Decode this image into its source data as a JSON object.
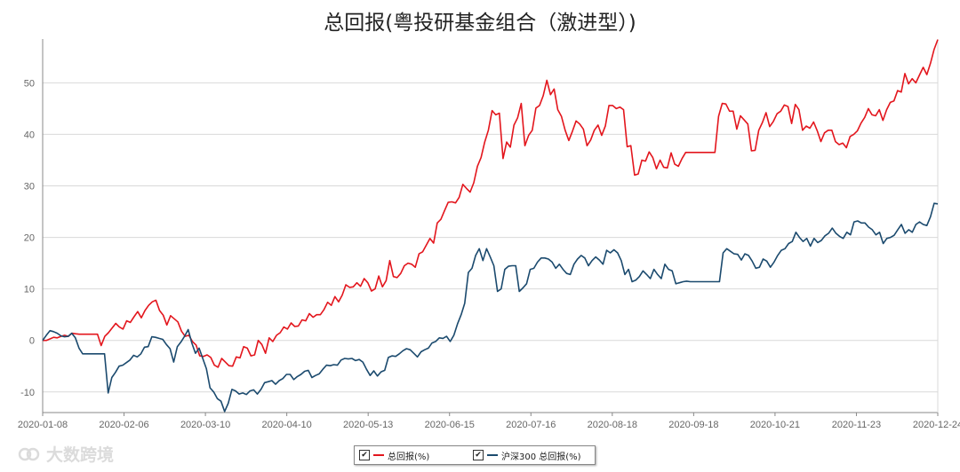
{
  "title": "总回报(粤投研基金组合（激进型）)",
  "colors": {
    "series1": "#e3161d",
    "series2": "#1b4a6e",
    "grid": "#d9d9d9",
    "axis": "#666666"
  },
  "legend": {
    "items": [
      {
        "label": "总回报(%)",
        "checked": "✔"
      },
      {
        "label": "沪深300 总回报(%)",
        "checked": "✔"
      }
    ]
  },
  "watermark": {
    "text": "大数跨境"
  },
  "chart_data": {
    "type": "line",
    "x_ticks": [
      "2020-01-08",
      "2020-02-06",
      "2020-03-10",
      "2020-04-10",
      "2020-05-13",
      "2020-06-15",
      "2020-07-16",
      "2020-08-18",
      "2020-09-18",
      "2020-10-21",
      "2020-11-23",
      "2020-12-24"
    ],
    "y_ticks": [
      -10,
      0,
      10,
      20,
      30,
      40,
      50
    ],
    "ylim": [
      -14,
      58.5
    ],
    "grid": true,
    "legend_position": "bottom",
    "series": [
      {
        "name": "总回报(%)",
        "color": "#e3161d",
        "values": [
          0,
          0,
          0.3,
          0.6,
          0.5,
          0.8,
          1.0,
          0.8,
          1.4,
          1.3,
          1.2,
          1.2,
          1.2,
          1.2,
          1.2,
          1.2,
          -1.0,
          0.8,
          1.5,
          2.4,
          3.3,
          2.6,
          2.2,
          3.8,
          3.5,
          4.6,
          5.6,
          4.4,
          5.8,
          6.8,
          7.5,
          7.8,
          5.8,
          4.9,
          3.0,
          4.8,
          4.2,
          3.6,
          1.8,
          0.8,
          1.0,
          -0.2,
          -0.9,
          -3.0,
          -3.1,
          -2.8,
          -3.3,
          -4.8,
          -5.2,
          -3.5,
          -4.2,
          -4.9,
          -5.0,
          -3.2,
          -3.4,
          -1.2,
          -1.5,
          -3.0,
          -2.8,
          0.0,
          -0.8,
          -2.5,
          0.5,
          -0.2,
          1.0,
          1.5,
          2.6,
          2.2,
          3.4,
          2.7,
          2.8,
          4.0,
          3.8,
          5.2,
          4.5,
          5.0,
          5.0,
          6.0,
          7.4,
          6.8,
          8.5,
          7.5,
          8.8,
          10.8,
          10.3,
          10.4,
          11.2,
          10.5,
          12.0,
          11.2,
          9.6,
          10.0,
          12.5,
          10.4,
          11.6,
          15.5,
          12.4,
          12.2,
          13.0,
          14.5,
          15.0,
          14.8,
          14.2,
          16.8,
          17.2,
          18.5,
          19.8,
          18.9,
          22.8,
          23.5,
          25.2,
          26.8,
          26.9,
          26.7,
          27.8,
          30.3,
          29.5,
          28.8,
          30.6,
          33.8,
          35.5,
          38.5,
          40.8,
          44.6,
          43.8,
          44.1,
          35.3,
          38.5,
          37.5,
          41.8,
          43.2,
          46.0,
          37.8,
          39.8,
          40.8,
          45.1,
          45.6,
          47.5,
          50.5,
          47.7,
          48.8,
          44.8,
          43.5,
          40.8,
          38.8,
          40.6,
          42.6,
          42.0,
          41.0,
          37.8,
          38.9,
          40.8,
          41.8,
          39.8,
          41.6,
          45.6,
          45.6,
          45.0,
          45.3,
          44.8,
          37.6,
          37.8,
          32.1,
          32.3,
          35.0,
          34.8,
          36.6,
          35.5,
          33.3,
          35.0,
          33.6,
          33.5,
          36.4,
          34.2,
          33.8,
          35.3,
          36.5,
          36.5,
          36.5,
          36.5,
          36.5,
          36.5,
          36.5,
          36.5,
          36.5,
          43.5,
          46.0,
          45.9,
          44.5,
          44.5,
          41.0,
          43.6,
          42.8,
          42.0,
          36.8,
          36.9,
          40.8,
          42.3,
          44.2,
          41.5,
          42.5,
          44.0,
          44.5,
          45.7,
          45.4,
          42.1,
          45.8,
          44.8,
          40.8,
          41.6,
          41.2,
          42.4,
          40.7,
          38.6,
          40.3,
          40.8,
          40.8,
          38.6,
          38.0,
          38.3,
          37.4,
          39.6,
          40.0,
          40.7,
          42.2,
          43.3,
          45.0,
          43.8,
          43.6,
          44.8,
          42.7,
          44.8,
          46.2,
          46.5,
          48.5,
          48.2,
          51.8,
          49.8,
          50.8,
          50.0,
          51.5,
          53.0,
          51.6,
          53.8,
          56.5,
          58.4
        ]
      },
      {
        "name": "沪深300 总回报(%)",
        "color": "#1b4a6e",
        "values": [
          0,
          1.0,
          1.9,
          1.7,
          1.4,
          0.9,
          0.7,
          0.8,
          1.4,
          0.5,
          -1.5,
          -2.6,
          -2.6,
          -2.6,
          -2.6,
          -2.6,
          -2.6,
          -2.6,
          -10.2,
          -7.2,
          -6.2,
          -5.0,
          -4.8,
          -4.3,
          -3.8,
          -2.9,
          -3.2,
          -2.6,
          -1.3,
          -1.2,
          0.7,
          0.6,
          0.4,
          0.2,
          -0.8,
          -1.6,
          -4.2,
          -1.2,
          -0.3,
          0.8,
          2.1,
          -0.5,
          -2.5,
          -1.5,
          -3.5,
          -5.5,
          -9.2,
          -10.0,
          -11.3,
          -11.8,
          -13.8,
          -12.2,
          -9.5,
          -9.8,
          -10.4,
          -10.2,
          -10.5,
          -9.8,
          -9.6,
          -10.4,
          -9.5,
          -8.2,
          -8.0,
          -7.8,
          -8.5,
          -7.8,
          -7.4,
          -6.6,
          -6.6,
          -7.6,
          -7.0,
          -6.6,
          -6.0,
          -5.8,
          -7.2,
          -6.8,
          -6.5,
          -5.6,
          -4.8,
          -4.9,
          -4.7,
          -4.8,
          -3.8,
          -3.5,
          -3.6,
          -3.5,
          -3.9,
          -3.7,
          -4.2,
          -5.6,
          -6.8,
          -5.9,
          -6.9,
          -6.1,
          -5.8,
          -3.3,
          -3.0,
          -3.1,
          -2.6,
          -2.0,
          -1.6,
          -1.8,
          -2.5,
          -3.2,
          -2.2,
          -1.8,
          -1.5,
          -0.5,
          -0.2,
          0.5,
          0.4,
          0.8,
          -0.2,
          1.0,
          3.2,
          5.0,
          7.2,
          13.2,
          14.0,
          16.5,
          17.8,
          15.5,
          17.8,
          16.2,
          14.5,
          9.5,
          10.0,
          13.8,
          14.4,
          14.5,
          14.5,
          9.5,
          10.2,
          11.0,
          13.8,
          14.0,
          15.2,
          16.0,
          16.0,
          15.8,
          15.2,
          14.0,
          14.8,
          13.8,
          13.0,
          12.8,
          14.8,
          15.8,
          16.5,
          16.0,
          14.5,
          15.5,
          16.2,
          15.6,
          14.8,
          17.5,
          17.0,
          17.6,
          17.0,
          15.5,
          12.8,
          13.8,
          11.4,
          11.7,
          12.4,
          13.5,
          12.8,
          12.0,
          13.8,
          12.8,
          12.0,
          14.8,
          13.8,
          13.5,
          11.0,
          11.2,
          11.4,
          11.5,
          11.4,
          11.4,
          11.4,
          11.4,
          11.4,
          11.4,
          11.4,
          11.4,
          11.4,
          17.0,
          17.8,
          17.3,
          16.8,
          16.7,
          15.6,
          16.8,
          16.5,
          15.4,
          14.0,
          14.2,
          15.8,
          15.4,
          14.2,
          15.2,
          16.5,
          17.5,
          17.8,
          18.8,
          19.2,
          21.0,
          20.0,
          19.2,
          19.8,
          18.3,
          19.8,
          19.0,
          19.4,
          20.3,
          20.8,
          21.8,
          20.8,
          20.2,
          19.8,
          21.0,
          20.5,
          23.0,
          23.2,
          22.8,
          22.8,
          22.0,
          21.5,
          20.5,
          21.0,
          18.8,
          19.8,
          20.0,
          20.4,
          21.5,
          22.5,
          20.8,
          21.5,
          21.0,
          22.5,
          23.0,
          22.5,
          22.3,
          24.0,
          26.6,
          26.5
        ]
      }
    ]
  }
}
